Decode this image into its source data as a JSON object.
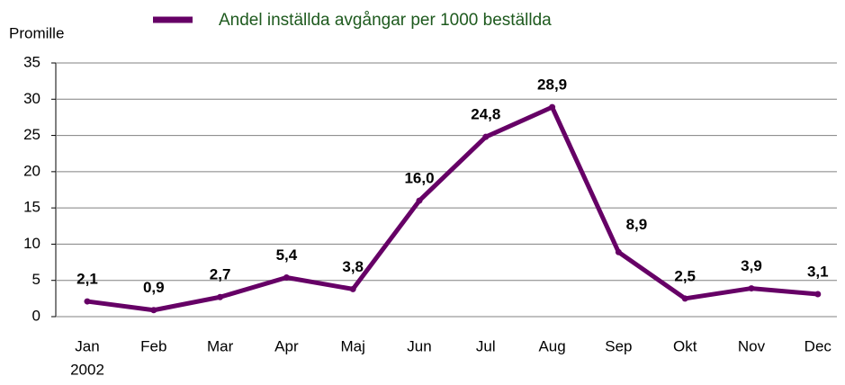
{
  "chart_data": {
    "type": "line",
    "y_label": "Promille",
    "categories": [
      "Jan",
      "Feb",
      "Mar",
      "Apr",
      "Maj",
      "Jun",
      "Jul",
      "Aug",
      "Sep",
      "Okt",
      "Nov",
      "Dec"
    ],
    "year": "2002",
    "series": [
      {
        "name": "Andel inställda avgångar per 1000 beställda",
        "color": "#660066",
        "values": [
          2.1,
          0.9,
          2.7,
          5.4,
          3.8,
          16.0,
          24.8,
          28.9,
          8.9,
          2.5,
          3.9,
          3.1
        ],
        "value_labels": [
          "2,1",
          "0,9",
          "2,7",
          "5,4",
          "3,8",
          "16,0",
          "24,8",
          "28,9",
          "8,9",
          "2,5",
          "3,9",
          "3,1"
        ]
      }
    ],
    "ylim": [
      0,
      35
    ],
    "yticks": [
      0,
      5,
      10,
      15,
      20,
      25,
      30,
      35
    ],
    "grid": true,
    "legend": "top"
  }
}
